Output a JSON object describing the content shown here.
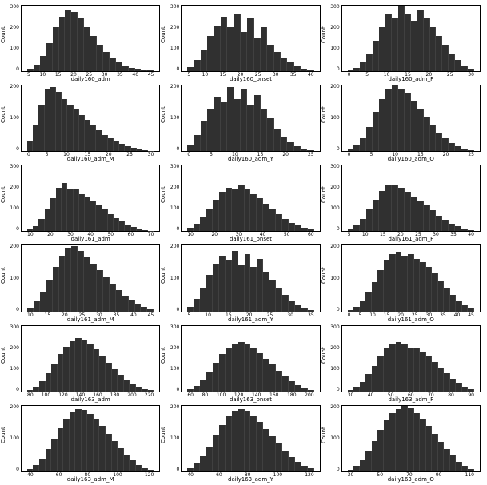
{
  "figure": {
    "rows": 6,
    "cols": 3,
    "background_color": "#ffffff",
    "panel_border_color": "#000000",
    "bar_color": "#303030",
    "ylabel": "Count",
    "label_fontsize": 7,
    "tick_fontsize": 6
  },
  "panels": [
    {
      "xlabel": "daily160_adm",
      "type": "histogram",
      "ylim": [
        0,
        300
      ],
      "ytick_step": 100,
      "xlim": [
        5,
        45
      ],
      "xtick_step": 5,
      "values": [
        10,
        30,
        70,
        130,
        200,
        250,
        280,
        270,
        240,
        200,
        160,
        120,
        90,
        60,
        40,
        25,
        15,
        10,
        6,
        3
      ]
    },
    {
      "xlabel": "daily160_onset",
      "type": "histogram",
      "ylim": [
        0,
        300
      ],
      "ytick_step": 100,
      "xlim": [
        5,
        40
      ],
      "xtick_step": 5,
      "values": [
        20,
        50,
        100,
        160,
        210,
        250,
        200,
        260,
        180,
        240,
        150,
        200,
        120,
        90,
        60,
        40,
        25,
        12,
        5
      ]
    },
    {
      "xlabel": "daily160_adm_F",
      "type": "histogram",
      "ylim": [
        0,
        300
      ],
      "ytick_step": 100,
      "xlim": [
        0,
        30
      ],
      "xtick_step": 5,
      "values": [
        5,
        15,
        40,
        80,
        140,
        200,
        260,
        240,
        300,
        260,
        230,
        280,
        240,
        200,
        160,
        120,
        80,
        50,
        25,
        10
      ]
    },
    {
      "xlabel": "daily160_adm_M",
      "type": "histogram",
      "ylim": [
        0,
        200
      ],
      "ytick_step": 100,
      "xlim": [
        0,
        30
      ],
      "xtick_step": 5,
      "values": [
        30,
        80,
        140,
        190,
        195,
        180,
        160,
        140,
        130,
        110,
        95,
        80,
        65,
        50,
        40,
        30,
        22,
        15,
        10,
        5,
        3,
        2
      ]
    },
    {
      "xlabel": "daily160_adm_Y",
      "type": "histogram",
      "ylim": [
        0,
        200
      ],
      "ytick_step": 100,
      "xlim": [
        0,
        25
      ],
      "xtick_step": 5,
      "values": [
        20,
        50,
        90,
        130,
        165,
        150,
        195,
        160,
        190,
        140,
        170,
        130,
        100,
        70,
        45,
        28,
        15,
        8,
        3
      ]
    },
    {
      "xlabel": "daily160_adm_O",
      "type": "histogram",
      "ylim": [
        0,
        200
      ],
      "ytick_step": 100,
      "xlim": [
        0,
        25
      ],
      "xtick_step": 5,
      "values": [
        5,
        18,
        40,
        75,
        120,
        160,
        190,
        200,
        190,
        175,
        155,
        130,
        105,
        80,
        58,
        40,
        25,
        15,
        8,
        3
      ]
    },
    {
      "xlabel": "daily161_adm",
      "type": "histogram",
      "ylim": [
        0,
        300
      ],
      "ytick_step": 100,
      "xlim": [
        10,
        75
      ],
      "xtick_step": 10,
      "values": [
        10,
        25,
        55,
        100,
        150,
        200,
        220,
        190,
        195,
        170,
        160,
        140,
        120,
        100,
        80,
        60,
        45,
        30,
        20,
        12,
        6,
        3
      ]
    },
    {
      "xlabel": "daily161_onset",
      "type": "histogram",
      "ylim": [
        0,
        300
      ],
      "ytick_step": 100,
      "xlim": [
        10,
        60
      ],
      "xtick_step": 10,
      "values": [
        15,
        35,
        65,
        105,
        145,
        180,
        200,
        195,
        210,
        190,
        170,
        150,
        125,
        100,
        78,
        58,
        40,
        26,
        15,
        8
      ]
    },
    {
      "xlabel": "daily161_adm_F",
      "type": "histogram",
      "ylim": [
        0,
        300
      ],
      "ytick_step": 100,
      "xlim": [
        5,
        40
      ],
      "xtick_step": 5,
      "values": [
        10,
        28,
        58,
        100,
        145,
        185,
        210,
        215,
        200,
        180,
        160,
        140,
        118,
        95,
        72,
        52,
        35,
        22,
        12,
        5
      ]
    },
    {
      "xlabel": "daily161_adm_M",
      "type": "histogram",
      "ylim": [
        0,
        200
      ],
      "ytick_step": 100,
      "xlim": [
        10,
        45
      ],
      "xtick_step": 5,
      "values": [
        12,
        30,
        58,
        95,
        135,
        170,
        195,
        198,
        185,
        165,
        145,
        125,
        105,
        85,
        65,
        48,
        33,
        22,
        13,
        6
      ]
    },
    {
      "xlabel": "daily161_adm_Y",
      "type": "histogram",
      "ylim": [
        0,
        200
      ],
      "ytick_step": 100,
      "xlim": [
        5,
        35
      ],
      "xtick_step": 5,
      "values": [
        15,
        38,
        70,
        110,
        145,
        170,
        155,
        185,
        140,
        175,
        135,
        160,
        120,
        95,
        70,
        50,
        32,
        18,
        9,
        3
      ]
    },
    {
      "xlabel": "daily161_adm_O",
      "type": "histogram",
      "ylim": [
        0,
        200
      ],
      "ytick_step": 100,
      "xlim": [
        0,
        45
      ],
      "xtick_step": 5,
      "values": [
        5,
        15,
        32,
        58,
        90,
        125,
        155,
        175,
        180,
        170,
        175,
        160,
        150,
        135,
        115,
        92,
        70,
        50,
        32,
        18,
        9
      ]
    },
    {
      "xlabel": "daily163_adm",
      "type": "histogram",
      "ylim": [
        0,
        300
      ],
      "ytick_step": 100,
      "xlim": [
        80,
        220
      ],
      "xtick_step": 20,
      "values": [
        8,
        22,
        48,
        85,
        128,
        170,
        205,
        230,
        245,
        238,
        218,
        192,
        162,
        132,
        102,
        76,
        54,
        36,
        22,
        12,
        5
      ]
    },
    {
      "xlabel": "daily163_onset",
      "type": "histogram",
      "ylim": [
        0,
        300
      ],
      "ytick_step": 100,
      "xlim": [
        60,
        200
      ],
      "xtick_step": 20,
      "values": [
        10,
        26,
        52,
        88,
        130,
        170,
        200,
        218,
        225,
        215,
        198,
        175,
        150,
        122,
        95,
        70,
        48,
        30,
        16,
        7
      ]
    },
    {
      "xlabel": "daily163_adm_F",
      "type": "histogram",
      "ylim": [
        0,
        300
      ],
      "ytick_step": 100,
      "xlim": [
        30,
        90
      ],
      "xtick_step": 10,
      "values": [
        8,
        22,
        45,
        78,
        118,
        160,
        195,
        218,
        225,
        215,
        198,
        200,
        178,
        160,
        135,
        108,
        82,
        58,
        38,
        22,
        10
      ]
    },
    {
      "xlabel": "daily163_adm_M",
      "type": "histogram",
      "ylim": [
        0,
        200
      ],
      "ytick_step": 100,
      "xlim": [
        40,
        120
      ],
      "xtick_step": 20,
      "values": [
        8,
        20,
        40,
        68,
        100,
        132,
        160,
        180,
        190,
        188,
        175,
        158,
        138,
        115,
        92,
        70,
        50,
        33,
        20,
        10,
        4
      ]
    },
    {
      "xlabel": "daily163_adm_Y",
      "type": "histogram",
      "ylim": [
        0,
        200
      ],
      "ytick_step": 100,
      "xlim": [
        40,
        130
      ],
      "xtick_step": 20,
      "values": [
        10,
        24,
        46,
        76,
        110,
        142,
        168,
        185,
        190,
        182,
        168,
        150,
        130,
        108,
        85,
        64,
        45,
        30,
        18,
        9
      ]
    },
    {
      "xlabel": "daily163_adm_O",
      "type": "histogram",
      "ylim": [
        0,
        200
      ],
      "ytick_step": 100,
      "xlim": [
        30,
        120
      ],
      "xtick_step": 20,
      "values": [
        6,
        16,
        34,
        60,
        92,
        126,
        156,
        178,
        190,
        200,
        192,
        178,
        160,
        138,
        114,
        90,
        68,
        48,
        30,
        16,
        7
      ]
    }
  ]
}
